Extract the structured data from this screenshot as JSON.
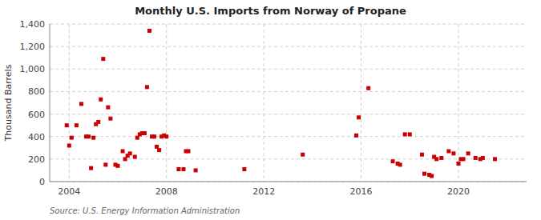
{
  "chart_data": {
    "type": "scatter",
    "title": "Monthly U.S. Imports from Norway of Propane",
    "ylabel": "Thousand Barrels",
    "annotations": [
      "Source: U.S. Energy Information Administration"
    ],
    "color": "#cc0000",
    "marker": "square",
    "grid": true,
    "xlim": [
      2003.2,
      2022.8
    ],
    "ylim": [
      0,
      1400
    ],
    "xticks": [
      2004,
      2008,
      2012,
      2016,
      2020
    ],
    "yticks": [
      0,
      200,
      400,
      600,
      800,
      {
        "value": 1000,
        "label": "1,000"
      },
      {
        "value": 1200,
        "label": "1,200"
      },
      {
        "value": 1400,
        "label": "1,400"
      }
    ],
    "x": [
      2003.9,
      2004.0,
      2004.1,
      2004.3,
      2004.5,
      2004.7,
      2004.8,
      2004.9,
      2005.0,
      2005.1,
      2005.2,
      2005.3,
      2005.4,
      2005.5,
      2005.6,
      2005.7,
      2005.9,
      2006.0,
      2006.2,
      2006.3,
      2006.4,
      2006.5,
      2006.7,
      2006.8,
      2006.9,
      2007.0,
      2007.1,
      2007.2,
      2007.3,
      2007.4,
      2007.5,
      2007.6,
      2007.7,
      2007.8,
      2007.9,
      2008.0,
      2008.5,
      2008.7,
      2008.8,
      2008.9,
      2009.2,
      2011.2,
      2013.6,
      2015.8,
      2015.9,
      2016.3,
      2017.3,
      2017.5,
      2017.6,
      2017.8,
      2018.0,
      2018.5,
      2018.6,
      2018.8,
      2018.9,
      2019.0,
      2019.1,
      2019.3,
      2019.6,
      2019.8,
      2020.0,
      2020.1,
      2020.2,
      2020.4,
      2020.7,
      2020.9,
      2021.0,
      2021.5
    ],
    "values": [
      500,
      320,
      390,
      500,
      690,
      400,
      400,
      120,
      390,
      510,
      530,
      730,
      1090,
      150,
      660,
      560,
      150,
      140,
      270,
      200,
      230,
      250,
      220,
      390,
      420,
      430,
      430,
      840,
      1340,
      400,
      400,
      310,
      280,
      400,
      410,
      400,
      110,
      110,
      270,
      270,
      100,
      110,
      240,
      410,
      570,
      830,
      180,
      160,
      150,
      420,
      420,
      240,
      70,
      60,
      50,
      220,
      200,
      210,
      270,
      250,
      160,
      200,
      200,
      250,
      210,
      200,
      210,
      200
    ]
  }
}
